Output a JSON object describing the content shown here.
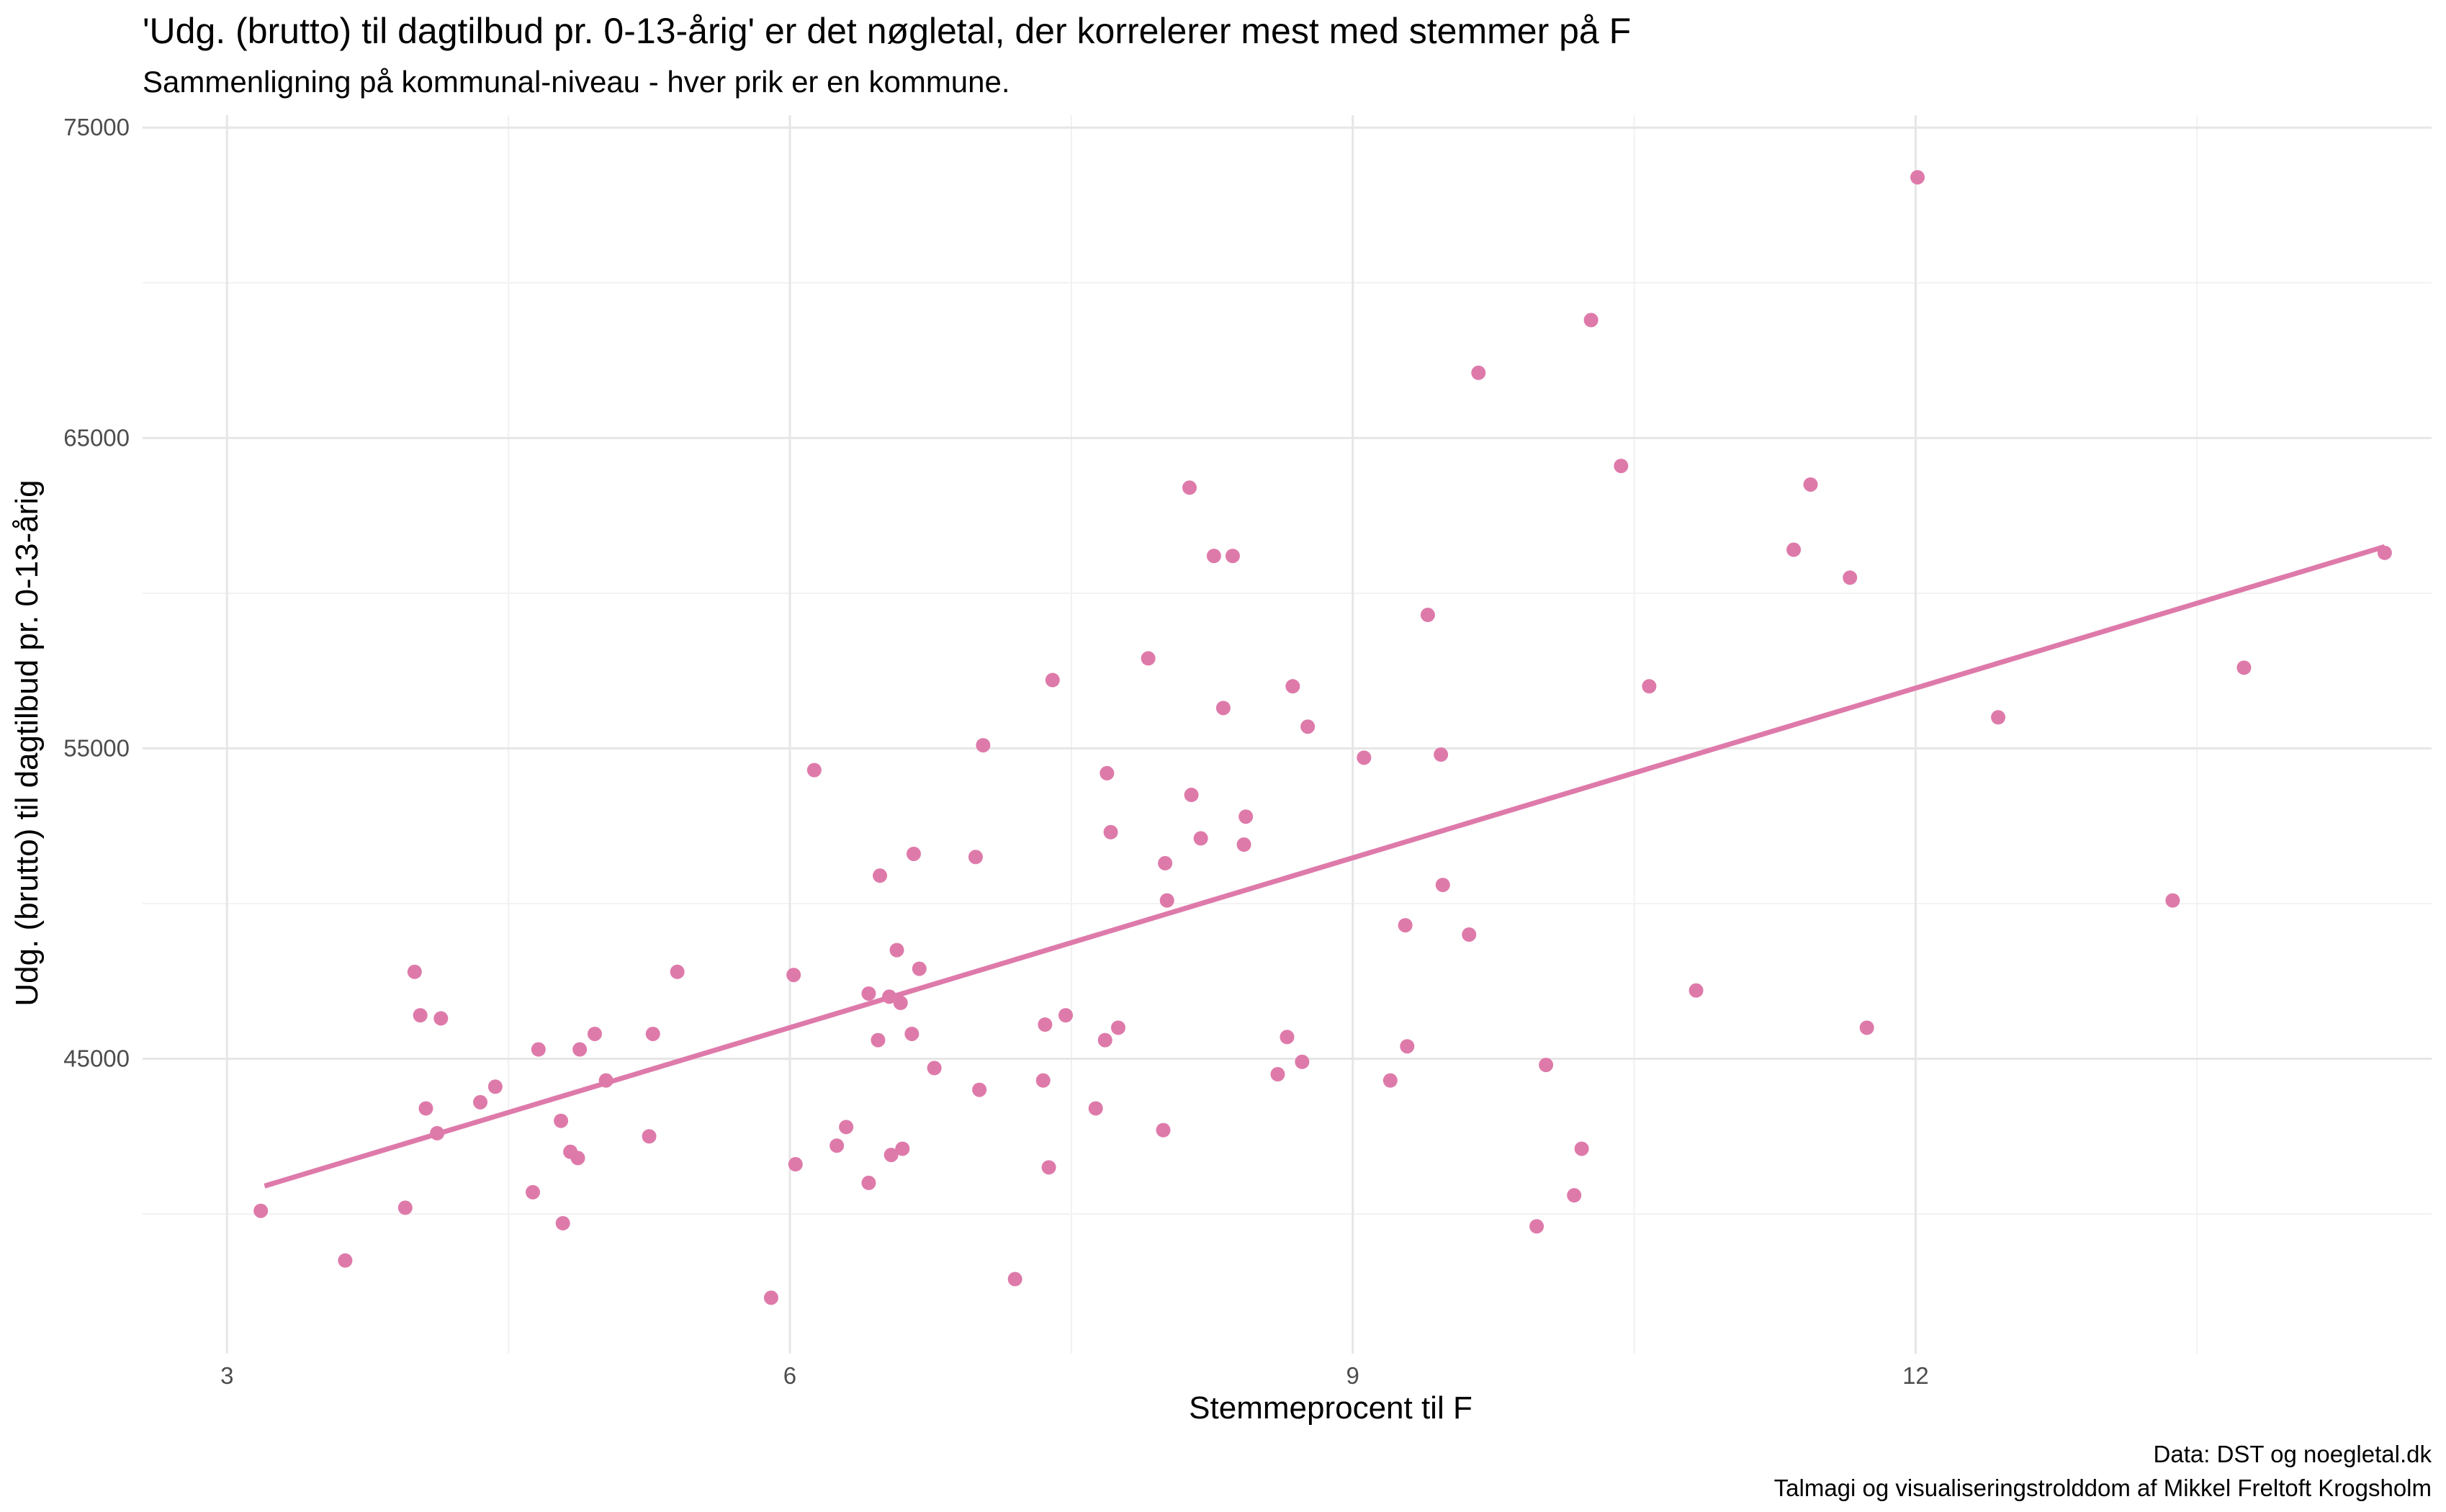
{
  "chart_data": {
    "type": "scatter",
    "title": "'Udg. (brutto) til dagtilbud pr. 0-13-årig' er det nøgletal, der korrelerer mest med stemmer på F",
    "subtitle": "Sammenligning på kommunal-niveau - hver prik er en kommune.",
    "xlabel": "Stemmeprocent til F",
    "ylabel": "Udg. (brutto) til dagtilbud pr. 0-13-årig",
    "xlim": [
      2.55,
      14.75
    ],
    "ylim": [
      35500,
      75400
    ],
    "x_ticks": [
      3,
      6,
      9,
      12
    ],
    "y_ticks": [
      45000,
      55000,
      65000,
      75000
    ],
    "x_tick_labels": [
      "3",
      "6",
      "9",
      "12"
    ],
    "y_tick_labels": [
      "45000",
      "55000",
      "65000",
      "75000"
    ],
    "grid": true,
    "point_color": "#DE7AAA",
    "trendline": {
      "x": [
        3.2,
        14.5
      ],
      "y": [
        40900,
        61500
      ],
      "color": "#DE7AAA"
    },
    "points": [
      [
        3.18,
        40100
      ],
      [
        3.63,
        38500
      ],
      [
        3.95,
        40200
      ],
      [
        4.0,
        47800
      ],
      [
        4.03,
        46400
      ],
      [
        4.06,
        43400
      ],
      [
        4.12,
        42600
      ],
      [
        4.14,
        46300
      ],
      [
        4.35,
        43600
      ],
      [
        4.43,
        44100
      ],
      [
        4.63,
        40700
      ],
      [
        4.66,
        45300
      ],
      [
        4.78,
        43000
      ],
      [
        4.79,
        39700
      ],
      [
        4.83,
        42000
      ],
      [
        4.87,
        41800
      ],
      [
        4.88,
        45300
      ],
      [
        4.96,
        45800
      ],
      [
        5.02,
        44300
      ],
      [
        5.25,
        42500
      ],
      [
        5.27,
        45800
      ],
      [
        5.4,
        47800
      ],
      [
        5.9,
        37300
      ],
      [
        6.02,
        47700
      ],
      [
        6.03,
        41600
      ],
      [
        6.13,
        54300
      ],
      [
        6.25,
        42200
      ],
      [
        6.3,
        42800
      ],
      [
        6.42,
        41000
      ],
      [
        6.42,
        47100
      ],
      [
        6.47,
        45600
      ],
      [
        6.48,
        50900
      ],
      [
        6.53,
        47000
      ],
      [
        6.54,
        41900
      ],
      [
        6.57,
        48500
      ],
      [
        6.59,
        46800
      ],
      [
        6.6,
        42100
      ],
      [
        6.65,
        45800
      ],
      [
        6.66,
        51600
      ],
      [
        6.69,
        47900
      ],
      [
        6.77,
        44700
      ],
      [
        6.99,
        51500
      ],
      [
        7.01,
        44000
      ],
      [
        7.03,
        55100
      ],
      [
        7.2,
        37900
      ],
      [
        7.35,
        44300
      ],
      [
        7.36,
        46100
      ],
      [
        7.38,
        41500
      ],
      [
        7.4,
        57200
      ],
      [
        7.47,
        46400
      ],
      [
        7.63,
        43400
      ],
      [
        7.68,
        45600
      ],
      [
        7.69,
        54200
      ],
      [
        7.71,
        52300
      ],
      [
        7.75,
        46000
      ],
      [
        7.91,
        57900
      ],
      [
        7.99,
        42700
      ],
      [
        8.0,
        51300
      ],
      [
        8.01,
        50100
      ],
      [
        8.13,
        63400
      ],
      [
        8.14,
        53500
      ],
      [
        8.19,
        52100
      ],
      [
        8.26,
        61200
      ],
      [
        8.31,
        56300
      ],
      [
        8.36,
        61200
      ],
      [
        8.42,
        51900
      ],
      [
        8.43,
        52800
      ],
      [
        8.6,
        44500
      ],
      [
        8.65,
        45700
      ],
      [
        8.68,
        57000
      ],
      [
        8.73,
        44900
      ],
      [
        8.76,
        55700
      ],
      [
        9.06,
        54700
      ],
      [
        9.2,
        44300
      ],
      [
        9.28,
        49300
      ],
      [
        9.29,
        45400
      ],
      [
        9.4,
        59300
      ],
      [
        9.47,
        54800
      ],
      [
        9.48,
        50600
      ],
      [
        9.62,
        49000
      ],
      [
        9.67,
        67100
      ],
      [
        9.98,
        39600
      ],
      [
        10.03,
        44800
      ],
      [
        10.18,
        40600
      ],
      [
        10.22,
        42100
      ],
      [
        10.27,
        68800
      ],
      [
        10.43,
        64100
      ],
      [
        10.58,
        57000
      ],
      [
        10.83,
        47200
      ],
      [
        11.35,
        61400
      ],
      [
        11.44,
        63500
      ],
      [
        11.65,
        60500
      ],
      [
        11.74,
        46000
      ],
      [
        12.01,
        73400
      ],
      [
        12.44,
        56000
      ],
      [
        13.37,
        50100
      ],
      [
        13.75,
        57600
      ],
      [
        14.5,
        61300
      ]
    ]
  },
  "caption": {
    "source": "Data: DST og noegletal.dk",
    "credit": "Talmagi og visualiseringstrolddom af Mikkel Freltoft Krogsholm"
  }
}
